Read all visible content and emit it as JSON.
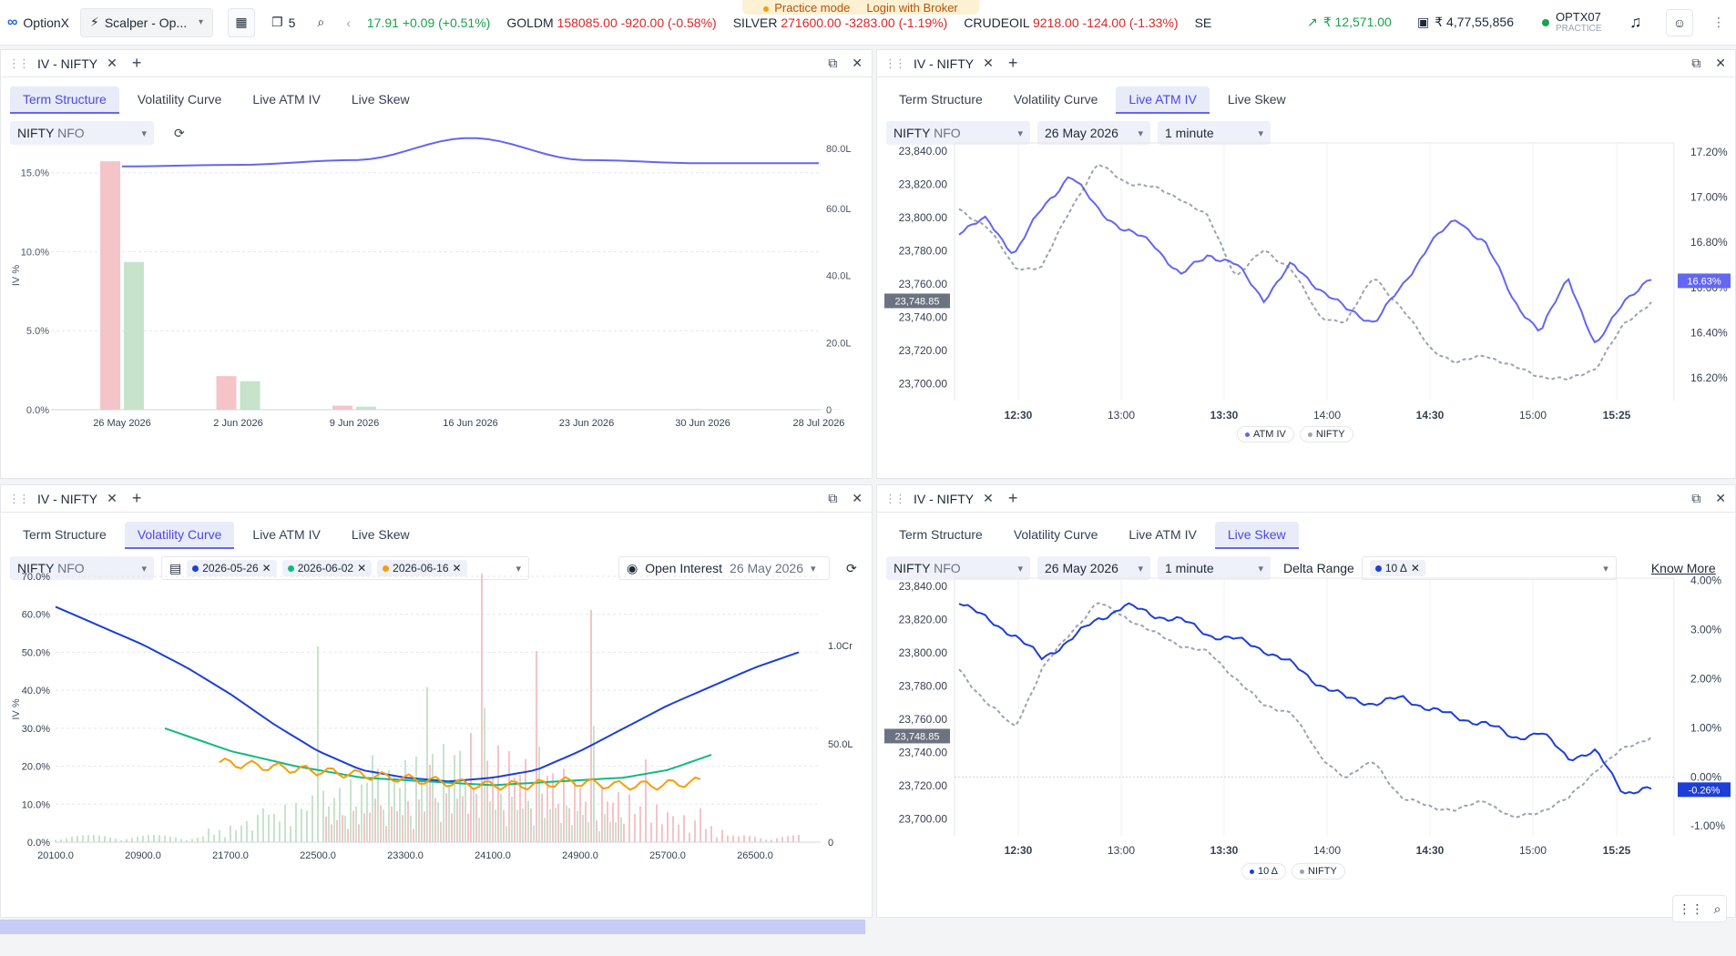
{
  "banner": {
    "mode": "Practice mode",
    "login": "Login with Broker"
  },
  "app": {
    "name": "OptionX",
    "workspace": "Scalper - Op...",
    "layout_count": "5"
  },
  "ticker": {
    "first": {
      "price": "17.91",
      "change": "+0.09 (+0.51%)"
    },
    "items": [
      {
        "name": "GOLDM",
        "price": "158085.00",
        "change": "-920.00 (-0.58%)"
      },
      {
        "name": "SILVER",
        "price": "271600.00",
        "change": "-3283.00 (-1.19%)"
      },
      {
        "name": "CRUDEOIL",
        "price": "9218.00",
        "change": "-124.00 (-1.33%)"
      },
      {
        "name": "SENSE",
        "price": "",
        "change": ""
      }
    ]
  },
  "account": {
    "pnl": "₹ 12,571.00",
    "funds": "₹ 4,77,55,856",
    "user": "OPTX07",
    "mode": "PRACTICE"
  },
  "tabs": [
    "Term Structure",
    "Volatility Curve",
    "Live ATM IV",
    "Live Skew"
  ],
  "panels": [
    {
      "title": "IV - NIFTY",
      "active_tab": 0,
      "symbol": "NIFTY",
      "exchange": "NFO"
    },
    {
      "title": "IV - NIFTY",
      "active_tab": 2,
      "symbol": "NIFTY",
      "exchange": "NFO",
      "expiry": "26 May 2026",
      "interval": "1 minute"
    },
    {
      "title": "IV - NIFTY",
      "active_tab": 1,
      "symbol": "NIFTY",
      "exchange": "NFO",
      "expiries": [
        "2026-05-26",
        "2026-06-02",
        "2026-06-16"
      ],
      "oi_label": "Open Interest",
      "oi_date": "26 May 2026"
    },
    {
      "title": "IV - NIFTY",
      "active_tab": 3,
      "symbol": "NIFTY",
      "exchange": "NFO",
      "expiry": "26 May 2026",
      "interval": "1 minute",
      "delta_label": "Delta Range",
      "delta_chip": "10 Δ",
      "know_more": "Know More"
    }
  ],
  "colors": {
    "accent": "#4f46e5",
    "iv_line": "#6366f1",
    "skew_line": "#1d3fd6",
    "nifty_line": "#9ca3af",
    "green": "#16a34a",
    "red": "#dc2626"
  },
  "chart_data": [
    {
      "type": "bar",
      "title": "Term Structure",
      "ylabel": "IV %",
      "categories": [
        "26 May 2026",
        "2 Jun 2026",
        "9 Jun 2026",
        "16 Jun 2026",
        "23 Jun 2026",
        "30 Jun 2026",
        "28 Jul 2026"
      ],
      "yticks": [
        "15.0%",
        "10.0%",
        "5.0%",
        "0.0%"
      ],
      "y2ticks": [
        "80.0L",
        "60.0L",
        "40.0L",
        "20.0L",
        "0"
      ],
      "series": [
        {
          "values": [
            74,
            10,
            1.2,
            0,
            0,
            0.2,
            0.1
          ]
        },
        {
          "values": [
            44,
            8.5,
            0.9,
            0,
            0,
            0.1,
            0.1
          ]
        }
      ],
      "iv_line": [
        15.4,
        15.5,
        15.8,
        17.2,
        15.8,
        15.6,
        15.6
      ]
    },
    {
      "type": "line",
      "title": "Live ATM IV",
      "x_ticks": [
        "12:30",
        "13:00",
        "13:30",
        "14:00",
        "14:30",
        "15:00",
        "15:25"
      ],
      "y_ticks": [
        "23,840.00",
        "23,820.00",
        "23,800.00",
        "23,780.00",
        "23,760.00",
        "23,740.00",
        "23,720.00",
        "23,700.00"
      ],
      "y2_ticks": [
        "17.20%",
        "17.00%",
        "16.80%",
        "16.60%",
        "16.40%",
        "16.20%"
      ],
      "last_nifty": "23,748.85",
      "last_iv": "16.63%",
      "series": [
        {
          "name": "ATM IV",
          "values": [
            16.85,
            16.9,
            16.75,
            16.95,
            17.1,
            16.95,
            16.85,
            16.8,
            16.65,
            16.75,
            16.7,
            16.55,
            16.7,
            16.6,
            16.5,
            16.45,
            16.6,
            16.8,
            16.9,
            16.8,
            16.55,
            16.4,
            16.65,
            16.33,
            16.55,
            16.63
          ]
        },
        {
          "name": "NIFTY",
          "values": [
            23805,
            23795,
            23770,
            23770,
            23805,
            23832,
            23822,
            23818,
            23812,
            23800,
            23765,
            23780,
            23770,
            23740,
            23738,
            23765,
            23745,
            23722,
            23712,
            23718,
            23710,
            23705,
            23702,
            23710,
            23735,
            23750
          ]
        }
      ]
    },
    {
      "type": "line",
      "title": "Volatility Curve",
      "ylabel": "IV %",
      "x_ticks": [
        "20100.0",
        "20900.0",
        "21700.0",
        "22500.0",
        "23300.0",
        "24100.0",
        "24900.0",
        "25700.0",
        "26500.0"
      ],
      "y_ticks": [
        "70.0%",
        "60.0%",
        "50.0%",
        "40.0%",
        "30.0%",
        "20.0%",
        "10.0%",
        "0.0%"
      ],
      "y2_ticks": [
        "1.0Cr",
        "50.0L",
        "0"
      ],
      "series": [
        {
          "name": "2026-05-26",
          "x": [
            20100,
            20500,
            20900,
            21300,
            21700,
            22100,
            22500,
            22900,
            23300,
            23700,
            24100,
            24500,
            24900,
            25300,
            25700,
            26100,
            26500,
            26900
          ],
          "values": [
            62,
            57,
            52,
            46,
            39,
            31,
            24,
            19,
            17,
            16,
            17,
            19,
            24,
            30,
            36,
            41,
            46,
            50
          ]
        },
        {
          "name": "2026-06-02",
          "x": [
            21100,
            21700,
            22300,
            22900,
            23500,
            24100,
            24700,
            25300,
            25700,
            26100
          ],
          "values": [
            30,
            24,
            20,
            17,
            16,
            15,
            16,
            17,
            19,
            23
          ]
        },
        {
          "name": "2026-06-16",
          "x": [
            21600,
            22000,
            22400,
            22800,
            23200,
            23600,
            24000,
            24400,
            24800,
            25200,
            25600,
            26000
          ],
          "values": [
            21,
            20,
            19,
            18,
            17,
            16,
            15,
            15,
            16,
            15,
            15,
            16
          ]
        }
      ]
    },
    {
      "type": "line",
      "title": "Live Skew",
      "x_ticks": [
        "12:30",
        "13:00",
        "13:30",
        "14:00",
        "14:30",
        "15:00",
        "15:25"
      ],
      "y_ticks": [
        "23,840.00",
        "23,820.00",
        "23,800.00",
        "23,780.00",
        "23,760.00",
        "23,740.00",
        "23,720.00",
        "23,700.00"
      ],
      "y2_ticks": [
        "4.00%",
        "3.00%",
        "2.00%",
        "1.00%",
        "0.00%",
        "-1.00%"
      ],
      "last_nifty": "23,748.85",
      "last_skew": "-0.26%",
      "series": [
        {
          "name": "10 Δ",
          "values": [
            3.6,
            3.2,
            2.9,
            2.4,
            2.8,
            3.2,
            3.5,
            3.3,
            3.2,
            2.9,
            2.8,
            2.6,
            2.3,
            1.9,
            1.6,
            1.5,
            1.6,
            1.4,
            1.2,
            1.1,
            0.8,
            0.9,
            0.4,
            0.5,
            -0.3,
            -0.26
          ]
        },
        {
          "name": "NIFTY",
          "values": [
            23790,
            23770,
            23755,
            23790,
            23812,
            23830,
            23822,
            23812,
            23805,
            23800,
            23785,
            23768,
            23765,
            23738,
            23725,
            23735,
            23712,
            23708,
            23705,
            23712,
            23700,
            23705,
            23712,
            23730,
            23742,
            23750
          ]
        }
      ]
    }
  ]
}
